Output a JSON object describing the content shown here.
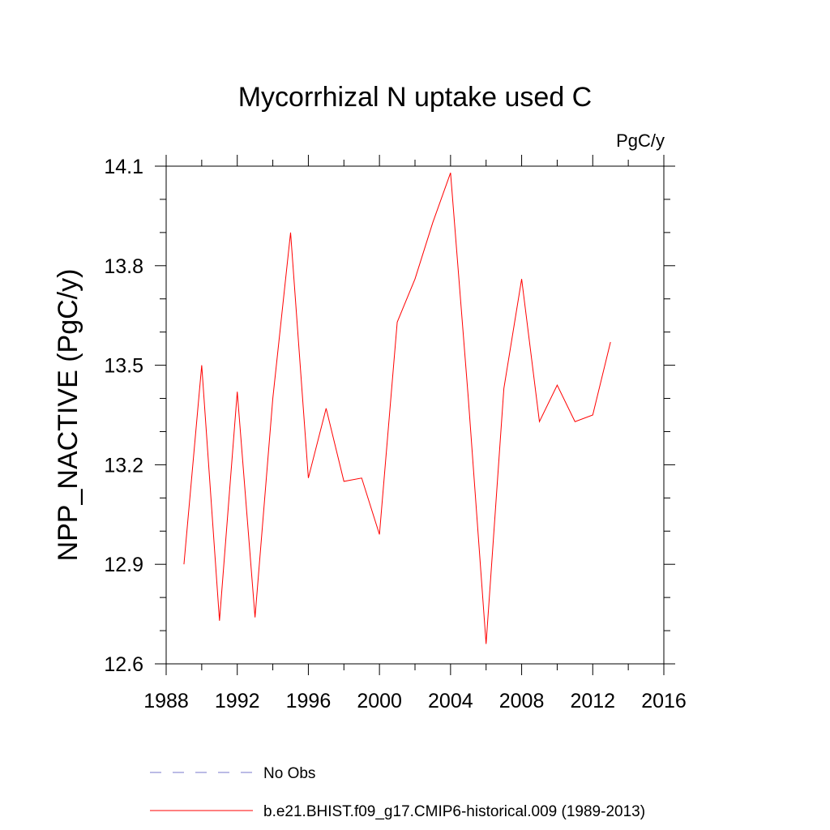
{
  "chart_data": {
    "type": "line",
    "title": "Mycorrhizal N uptake used C",
    "units_label": "PgC/y",
    "ylabel": "NPP_NACTIVE  (PgC/y)",
    "xlabel": "",
    "xlim": [
      1988,
      2016
    ],
    "ylim": [
      12.6,
      14.1
    ],
    "x_ticks": [
      1988,
      1992,
      1996,
      2000,
      2004,
      2008,
      2012,
      2016
    ],
    "y_ticks": [
      12.6,
      12.9,
      13.2,
      13.5,
      13.8,
      14.1
    ],
    "y_tick_labels": [
      "12.6",
      "12.9",
      "13.2",
      "13.5",
      "13.8",
      "14.1"
    ],
    "x_minor_step": 2,
    "y_minor_step": 0.1,
    "grid": false,
    "series": [
      {
        "name": "b.e21.BHIST.f09_g17.CMIP6-historical.009 (1989-2013)",
        "color": "#ff0000",
        "dash": "solid",
        "x": [
          1989,
          1990,
          1991,
          1992,
          1993,
          1994,
          1995,
          1996,
          1997,
          1998,
          1999,
          2000,
          2001,
          2002,
          2003,
          2004,
          2005,
          2006,
          2007,
          2008,
          2009,
          2010,
          2011,
          2012,
          2013
        ],
        "values": [
          12.9,
          13.5,
          12.73,
          13.42,
          12.74,
          13.4,
          13.9,
          13.16,
          13.37,
          13.15,
          13.16,
          12.99,
          13.63,
          13.76,
          13.93,
          14.08,
          13.4,
          12.66,
          13.43,
          13.76,
          13.33,
          13.44,
          13.33,
          13.35,
          13.57
        ]
      }
    ],
    "legend": [
      {
        "label": "No Obs",
        "color": "#7777cc",
        "dash": "dashed"
      },
      {
        "label": "b.e21.BHIST.f09_g17.CMIP6-historical.009 (1989-2013)",
        "color": "#ff0000",
        "dash": "solid"
      }
    ]
  }
}
